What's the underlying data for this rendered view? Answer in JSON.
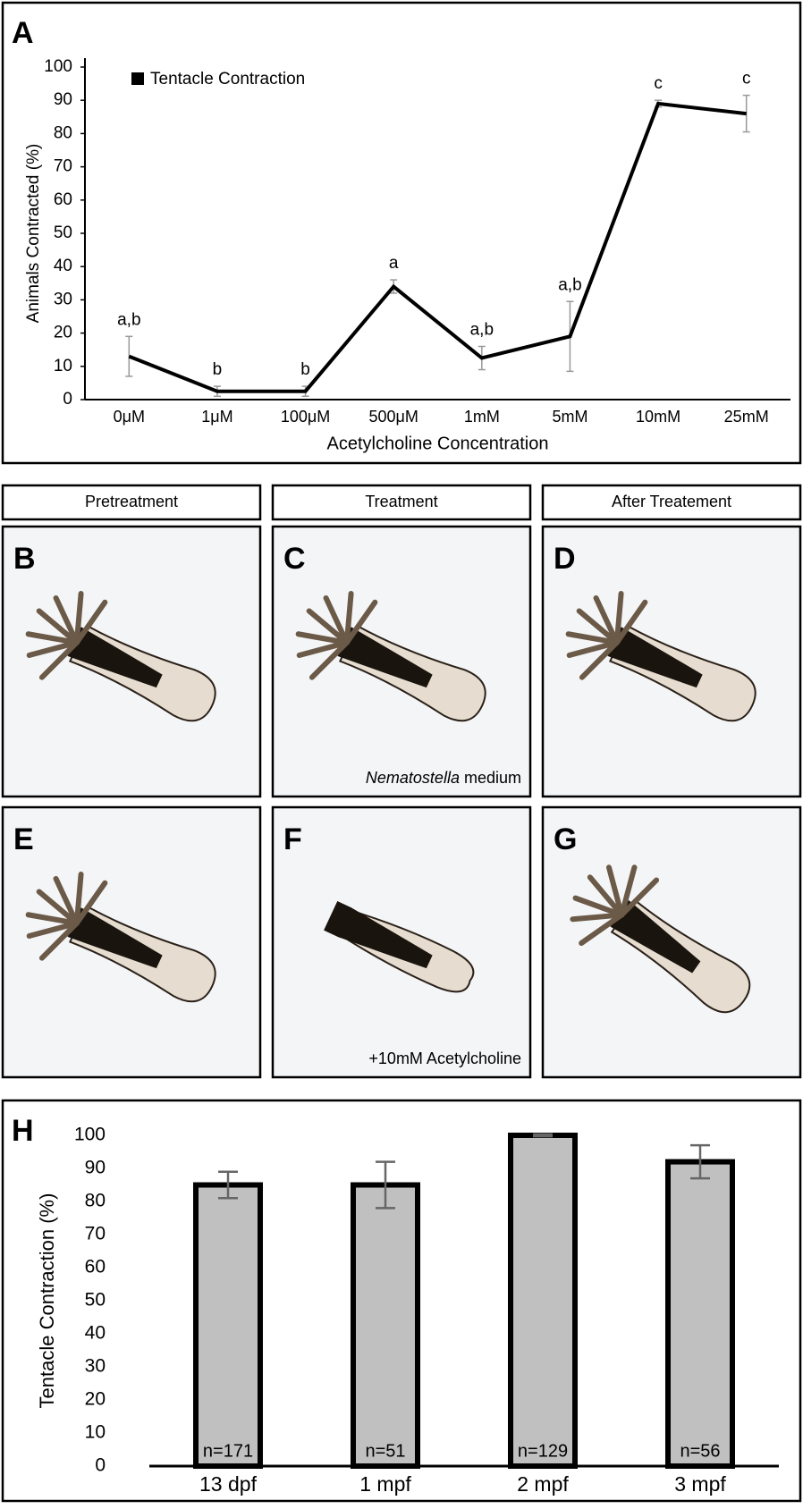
{
  "chart_data": [
    {
      "type": "line",
      "panel": "A",
      "categories": [
        "0μM",
        "1μM",
        "100μM",
        "500μM",
        "1mM",
        "5mM",
        "10mM",
        "25mM"
      ],
      "series": [
        {
          "name": "Tentacle Contraction",
          "color": "#000000",
          "values": [
            13,
            2.5,
            2.5,
            34,
            12.5,
            19,
            89,
            86
          ],
          "errors": [
            6,
            1.5,
            1.5,
            2,
            3.5,
            10.5,
            1,
            5.5
          ]
        }
      ],
      "annotations": [
        "a,b",
        "b",
        "b",
        "a",
        "a,b",
        "a,b",
        "c",
        "c"
      ],
      "xlabel": "Acetylcholine Concentration",
      "ylabel": "Animals Contracted (%)",
      "ylim": [
        0,
        100
      ],
      "yticks": [
        0,
        10,
        20,
        30,
        40,
        50,
        60,
        70,
        80,
        90,
        100
      ],
      "grid": false,
      "error_color": "#999999",
      "legend": "upper left"
    },
    {
      "type": "bar",
      "panel": "H",
      "categories": [
        "13 dpf",
        "1 mpf",
        "2 mpf",
        "3 mpf"
      ],
      "values": [
        85,
        85,
        100,
        92
      ],
      "errors": [
        4,
        7,
        0.3,
        5
      ],
      "annotations": [
        "n=171",
        "n=51",
        "n=129",
        "n=56"
      ],
      "color": "#c0c0c0",
      "ylabel": "Tentacle Contraction (%)",
      "ylim": [
        0,
        100
      ],
      "yticks": [
        0,
        10,
        20,
        30,
        40,
        50,
        60,
        70,
        80,
        90,
        100
      ],
      "grid": false,
      "error_color": "#666666"
    }
  ],
  "photos": {
    "columns": [
      "Pretreatment",
      "Treatment",
      "After Treatement"
    ],
    "panels": [
      {
        "label": "B"
      },
      {
        "label": "C",
        "caption": [
          "Nematostella",
          "medium"
        ]
      },
      {
        "label": "D"
      },
      {
        "label": "E"
      },
      {
        "label": "F",
        "caption": [
          "+10mM Acetylcholine"
        ]
      },
      {
        "label": "G"
      }
    ]
  }
}
